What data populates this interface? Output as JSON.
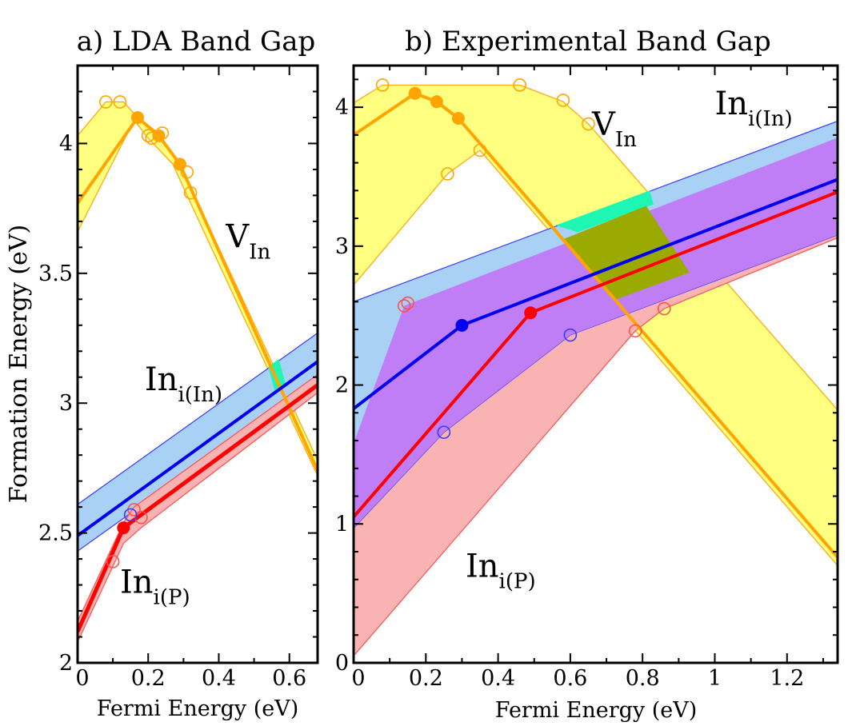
{
  "ylabel": "Formation Energy (eV)",
  "colors": {
    "yellow_band": "#ffff80",
    "yellow_edge": "#ffa500",
    "blue_band": "#a9d0f5",
    "blue_edge": "#3b3bff",
    "pink_band": "#f9b3b3",
    "pink_edge": "#ff5050",
    "purple_band": "#c07ef6",
    "cyan_overlap": "#1ef7b4",
    "olive_overlap": "#9aaa00",
    "v_line": "#ffa500",
    "blue_line": "#0000ee",
    "red_line": "#ff0000"
  },
  "chart_data": [
    {
      "type": "line",
      "panel": "a",
      "title": "a) LDA Band Gap",
      "xlabel": "Fermi Energy (eV)",
      "ylabel": "Formation Energy (eV)",
      "xlim": [
        0,
        0.68
      ],
      "ylim": [
        2,
        4.3
      ],
      "xticks": [
        0,
        0.2,
        0.4,
        0.6
      ],
      "xtick_labels": [
        "0",
        "0.2",
        "0.4",
        "0.6"
      ],
      "yticks": [
        2,
        2.5,
        3,
        3.5,
        4
      ],
      "ytick_labels": [
        "2",
        "2.5",
        "3",
        "3.5",
        "4"
      ],
      "annotations": [
        {
          "main": "V",
          "sub": "In",
          "x": 0.42,
          "y": 3.6
        },
        {
          "main": "In",
          "sub": "i(In)",
          "x": 0.19,
          "y": 3.05
        },
        {
          "main": "In",
          "sub": "i(P)",
          "x": 0.12,
          "y": 2.27
        }
      ],
      "bands": [
        {
          "name": "V_In band",
          "fill": "yellow_band",
          "edge": "yellow_edge",
          "upper": [
            [
              0,
              4.03
            ],
            [
              0.08,
              4.16
            ],
            [
              0.13,
              4.16
            ],
            [
              0.17,
              4.1
            ],
            [
              0.23,
              4.04
            ],
            [
              0.29,
              3.92
            ],
            [
              0.68,
              2.78
            ]
          ],
          "lower": [
            [
              0,
              3.66
            ],
            [
              0.16,
              4.09
            ],
            [
              0.2,
              4.02
            ],
            [
              0.27,
              3.92
            ],
            [
              0.31,
              3.8
            ],
            [
              0.68,
              2.72
            ]
          ]
        },
        {
          "name": "In_i(In) band",
          "fill": "blue_band",
          "edge": "blue_edge",
          "upper": [
            [
              0,
              2.61
            ],
            [
              0.68,
              3.27
            ]
          ],
          "lower": [
            [
              0,
              2.43
            ],
            [
              0.68,
              3.09
            ]
          ]
        },
        {
          "name": "In_i(P) band",
          "fill": "pink_band",
          "edge": "pink_edge",
          "upper": [
            [
              0,
              2.16
            ],
            [
              0.13,
              2.54
            ],
            [
              0.16,
              2.6
            ],
            [
              0.68,
              3.11
            ]
          ],
          "lower": [
            [
              0,
              2.08
            ],
            [
              0.13,
              2.46
            ],
            [
              0.18,
              2.52
            ],
            [
              0.68,
              3.04
            ]
          ]
        }
      ],
      "overlaps": [
        {
          "fill": "cyan_overlap",
          "points": [
            [
              0.54,
              3.14
            ],
            [
              0.57,
              3.17
            ],
            [
              0.59,
              3.07
            ],
            [
              0.56,
              3.04
            ]
          ]
        }
      ],
      "series": [
        {
          "name": "V_In",
          "color": "v_line",
          "width": 4,
          "x": [
            0,
            0.17,
            0.23,
            0.29,
            0.68
          ],
          "y": [
            3.77,
            4.1,
            4.03,
            3.92,
            2.74
          ],
          "filled_markers": [
            [
              0.17,
              4.1
            ],
            [
              0.23,
              4.03
            ],
            [
              0.29,
              3.92
            ]
          ]
        },
        {
          "name": "In_i(In)",
          "color": "blue_line",
          "width": 4,
          "x": [
            0,
            0.68
          ],
          "y": [
            2.49,
            3.16
          ],
          "filled_markers": []
        },
        {
          "name": "In_i(P)",
          "color": "red_line",
          "width": 5,
          "x": [
            0,
            0.13,
            0.68
          ],
          "y": [
            2.12,
            2.52,
            3.07
          ],
          "filled_markers": [
            [
              0.13,
              2.52
            ]
          ]
        }
      ],
      "open_markers": [
        {
          "color": "v_line",
          "points": [
            [
              0.08,
              4.16
            ],
            [
              0.12,
              4.16
            ],
            [
              0.2,
              4.03
            ],
            [
              0.21,
              4.02
            ],
            [
              0.24,
              4.04
            ],
            [
              0.31,
              3.89
            ],
            [
              0.32,
              3.81
            ]
          ]
        },
        {
          "color": "pink_edge",
          "points": [
            [
              0.1,
              2.39
            ],
            [
              0.16,
              2.59
            ],
            [
              0.18,
              2.56
            ]
          ]
        },
        {
          "color": "blue_edge",
          "points": [
            [
              0.15,
              2.57
            ]
          ]
        }
      ]
    },
    {
      "type": "line",
      "panel": "b",
      "title": "b) Experimental Band Gap",
      "xlabel": "Fermi Energy (eV)",
      "ylabel": "",
      "xlim": [
        0,
        1.34
      ],
      "ylim": [
        0,
        4.3
      ],
      "xticks": [
        0,
        0.2,
        0.4,
        0.6,
        0.8,
        1,
        1.2
      ],
      "xtick_labels": [
        "0",
        "0.2",
        "0.4",
        "0.6",
        "0.8",
        "1",
        "1.2"
      ],
      "yticks": [
        0,
        1,
        2,
        3,
        4
      ],
      "ytick_labels": [
        "0",
        "1",
        "2",
        "3",
        "4"
      ],
      "annotations": [
        {
          "main": "V",
          "sub": "In",
          "x": 0.66,
          "y": 3.8
        },
        {
          "main": "In",
          "sub": "i(In)",
          "x": 1.0,
          "y": 3.95
        },
        {
          "main": "In",
          "sub": "i(P)",
          "x": 0.31,
          "y": 0.62
        }
      ],
      "bands": [
        {
          "name": "V_In band",
          "fill": "yellow_band",
          "edge": "yellow_edge",
          "upper": [
            [
              0,
              4.03
            ],
            [
              0.08,
              4.16
            ],
            [
              0.46,
              4.16
            ],
            [
              0.58,
              4.04
            ],
            [
              0.65,
              3.88
            ],
            [
              1.34,
              1.82
            ]
          ],
          "lower": [
            [
              0,
              2.72
            ],
            [
              0.26,
              3.52
            ],
            [
              0.35,
              3.69
            ],
            [
              1.34,
              0.7
            ]
          ]
        },
        {
          "name": "In_i(P) band",
          "fill": "pink_band",
          "edge": "pink_edge",
          "upper": [
            [
              0,
              1.58
            ],
            [
              0.14,
              2.57
            ],
            [
              1.34,
              3.78
            ]
          ],
          "lower": [
            [
              0,
              0.05
            ],
            [
              0.78,
              2.39
            ],
            [
              0.86,
              2.55
            ],
            [
              1.34,
              3.06
            ]
          ]
        },
        {
          "name": "In_i(In) band",
          "fill": "blue_band",
          "edge": "blue_edge",
          "upper": [
            [
              0,
              2.6
            ],
            [
              1.34,
              3.9
            ]
          ],
          "lower": [
            [
              0,
              0.97
            ],
            [
              0.25,
              1.66
            ],
            [
              0.6,
              2.36
            ],
            [
              1.34,
              3.08
            ]
          ]
        }
      ],
      "overlaps": [
        {
          "fill": "purple_band",
          "points": [
            [
              0,
              1.58
            ],
            [
              0.14,
              2.57
            ],
            [
              1.34,
              3.78
            ],
            [
              1.34,
              3.08
            ],
            [
              0.6,
              2.36
            ],
            [
              0.25,
              1.66
            ],
            [
              0,
              0.97
            ]
          ]
        },
        {
          "fill": "cyan_overlap",
          "points": [
            [
              0.56,
              3.15
            ],
            [
              0.82,
              3.4
            ],
            [
              0.83,
              3.3
            ],
            [
              0.62,
              3.1
            ]
          ]
        },
        {
          "fill": "olive_overlap",
          "points": [
            [
              0.58,
              3.05
            ],
            [
              0.81,
              3.29
            ],
            [
              0.93,
              2.81
            ],
            [
              0.72,
              2.61
            ]
          ]
        }
      ],
      "series": [
        {
          "name": "V_In",
          "color": "v_line",
          "width": 4,
          "x": [
            0,
            0.17,
            0.23,
            0.29,
            1.34
          ],
          "y": [
            3.8,
            4.1,
            4.04,
            3.92,
            0.76
          ],
          "filled_markers": [
            [
              0.17,
              4.1
            ],
            [
              0.23,
              4.04
            ],
            [
              0.29,
              3.92
            ]
          ]
        },
        {
          "name": "In_i(In)",
          "color": "blue_line",
          "width": 4,
          "x": [
            0,
            0.3,
            1.34
          ],
          "y": [
            1.83,
            2.43,
            3.48
          ],
          "filled_markers": [
            [
              0.3,
              2.43
            ]
          ]
        },
        {
          "name": "In_i(P)",
          "color": "red_line",
          "width": 4,
          "x": [
            0,
            0.49,
            1.34
          ],
          "y": [
            1.05,
            2.52,
            3.39
          ],
          "filled_markers": [
            [
              0.49,
              2.52
            ]
          ]
        }
      ],
      "open_markers": [
        {
          "color": "v_line",
          "points": [
            [
              0.08,
              4.16
            ],
            [
              0.46,
              4.16
            ],
            [
              0.58,
              4.05
            ],
            [
              0.65,
              3.88
            ],
            [
              0.26,
              3.52
            ],
            [
              0.35,
              3.69
            ]
          ]
        },
        {
          "color": "pink_edge",
          "points": [
            [
              0.14,
              2.57
            ],
            [
              0.15,
              2.59
            ],
            [
              0.78,
              2.39
            ],
            [
              0.86,
              2.55
            ]
          ]
        },
        {
          "color": "blue_edge",
          "points": [
            [
              0.25,
              1.66
            ],
            [
              0.6,
              2.36
            ]
          ]
        }
      ]
    }
  ]
}
